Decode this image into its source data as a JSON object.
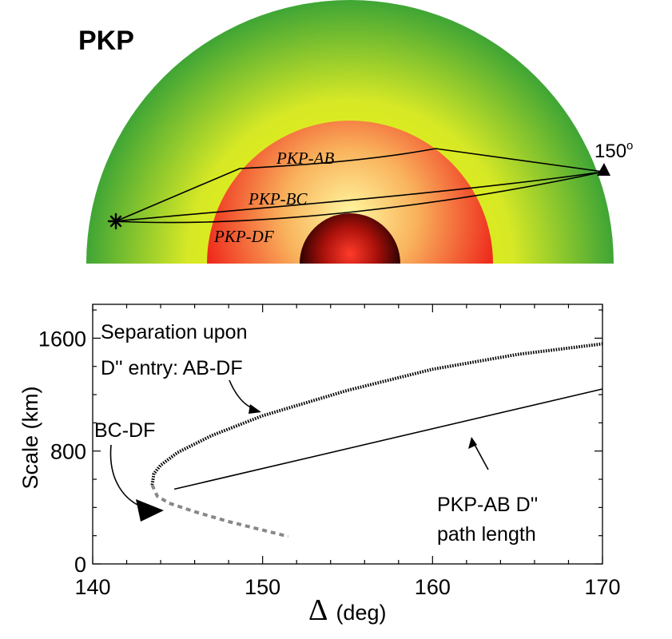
{
  "top_panel": {
    "title": "PKP",
    "ray_labels": [
      "PKP-AB",
      "PKP-BC",
      "PKP-DF"
    ],
    "receiver_distance": "150",
    "receiver_degree_mark": "o",
    "colors": {
      "mantle_center": "#ffff00",
      "mantle_edge": "#3fa535",
      "outer_core_center": "#fff8a0",
      "outer_core_edge": "#ee2a1c",
      "inner_core_center": "#ff3b2b",
      "inner_core_edge": "#1a0000"
    }
  },
  "chart_data": {
    "type": "line",
    "xlabel_symbol": "Δ",
    "xlabel_unit": "(deg)",
    "ylabel": "Scale (km)",
    "xlim": [
      140,
      170
    ],
    "ylim": [
      0,
      1840
    ],
    "x_ticks": [
      140,
      150,
      160,
      170
    ],
    "y_ticks": [
      0,
      800,
      1600
    ],
    "series": [
      {
        "label": "AB-DF",
        "style": "dotted",
        "color": "#000000",
        "points": [
          [
            143.5,
            560
          ],
          [
            143.6,
            640
          ],
          [
            144,
            700
          ],
          [
            145,
            790
          ],
          [
            147,
            910
          ],
          [
            150,
            1050
          ],
          [
            155,
            1230
          ],
          [
            160,
            1380
          ],
          [
            165,
            1485
          ],
          [
            170,
            1560
          ]
        ]
      },
      {
        "label": "BC-DF",
        "style": "dashed",
        "color": "#888888",
        "points": [
          [
            143.5,
            560
          ],
          [
            143.8,
            480
          ],
          [
            144.5,
            430
          ],
          [
            146,
            370
          ],
          [
            148,
            300
          ],
          [
            150,
            240
          ],
          [
            151.5,
            195
          ]
        ]
      },
      {
        "label": "PKP-AB D'' path length",
        "style": "solid",
        "color": "#000000",
        "points": [
          [
            144.8,
            530
          ],
          [
            170,
            1240
          ]
        ]
      }
    ],
    "annotations": {
      "ab_df": [
        "Separation upon",
        "D'' entry: AB-DF"
      ],
      "bc_df": "BC-DF",
      "path_length": [
        "PKP-AB  D''",
        "path length"
      ]
    }
  }
}
